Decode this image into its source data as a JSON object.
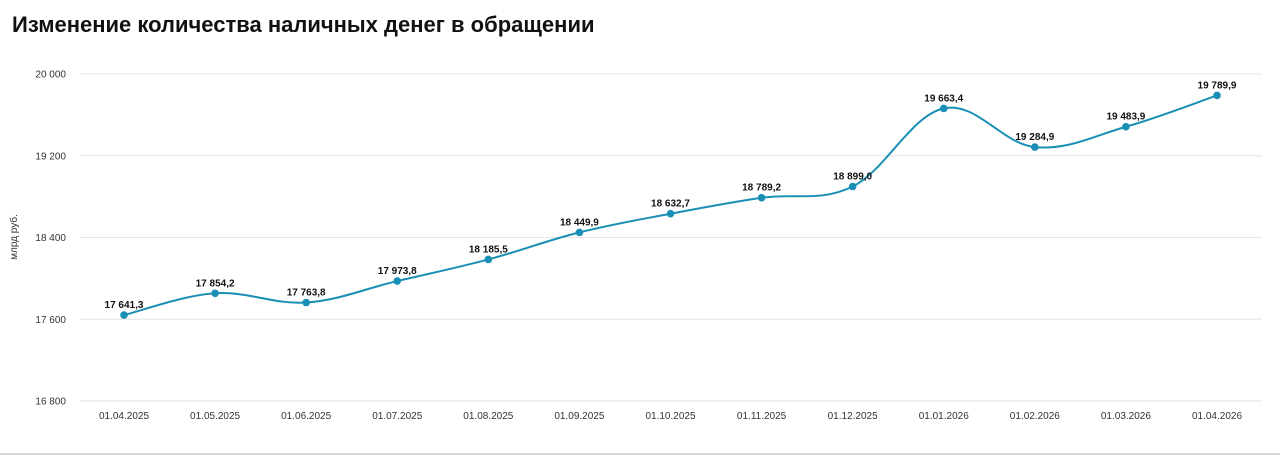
{
  "chart_data": {
    "type": "line",
    "title": "Изменение количества наличных денег в обращении",
    "ylabel": "млрд руб.",
    "xlabel": "",
    "ylim": [
      16800,
      20000
    ],
    "yticks": [
      16800,
      17600,
      18400,
      19200,
      20000
    ],
    "ytick_labels": [
      "16 800",
      "17 600",
      "18 400",
      "19 200",
      "20 000"
    ],
    "grid": true,
    "legend": "none",
    "categories": [
      "01.04.2025",
      "01.05.2025",
      "01.06.2025",
      "01.07.2025",
      "01.08.2025",
      "01.09.2025",
      "01.10.2025",
      "01.11.2025",
      "01.12.2025",
      "01.01.2026",
      "01.02.2026",
      "01.03.2026",
      "01.04.2026"
    ],
    "series": [
      {
        "values": [
          17641.3,
          17854.2,
          17763.8,
          17973.8,
          18185.5,
          18449.9,
          18632.7,
          18789.2,
          18899.0,
          19663.4,
          19284.9,
          19483.9,
          19789.9
        ],
        "labels": [
          "17 641,3",
          "17 854,2",
          "17 763,8",
          "17 973,8",
          "18 185,5",
          "18 449,9",
          "18 632,7",
          "18 789,2",
          "18 899,0",
          "19 663,4",
          "19 284,9",
          "19 483,9",
          "19 789,9"
        ],
        "color": "#1a8fb5"
      }
    ]
  }
}
